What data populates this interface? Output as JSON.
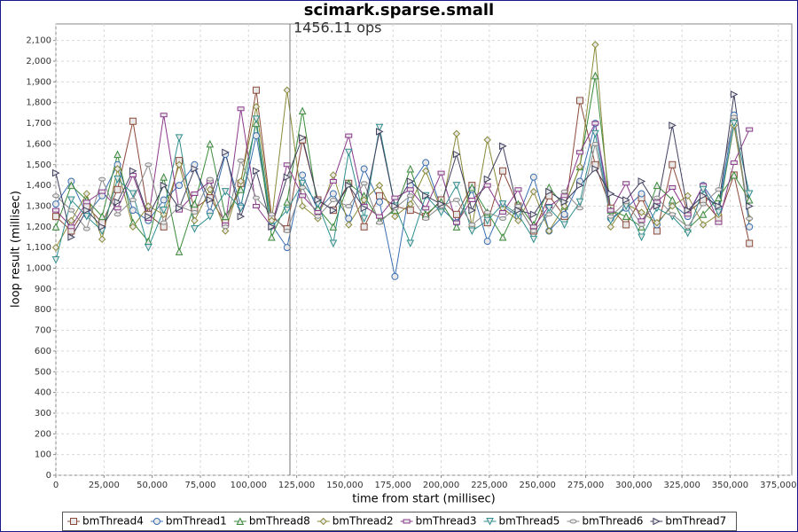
{
  "chart_data": {
    "type": "line",
    "title": "scimark.sparse.small",
    "x_label": "time from start (millisec)",
    "y_label": "loop result (millisec)",
    "x": [
      0,
      8000,
      16000,
      24000,
      32000,
      40000,
      48000,
      56000,
      64000,
      72000,
      80000,
      88000,
      96000,
      104000,
      112000,
      120000,
      128000,
      136000,
      144000,
      152000,
      160000,
      168000,
      176000,
      184000,
      192000,
      200000,
      208000,
      216000,
      224000,
      232000,
      240000,
      248000,
      256000,
      264000,
      272000,
      280000,
      288000,
      296000,
      304000,
      312000,
      320000,
      328000,
      336000,
      344000,
      352000,
      360000
    ],
    "xlim": [
      0,
      382000
    ],
    "ylim": [
      0,
      2180
    ],
    "grid": true,
    "legend": "bottom",
    "xticks": [
      0,
      {
        "value": 25000,
        "label": "25,000"
      },
      {
        "value": 50000,
        "label": "50,000"
      },
      {
        "value": 75000,
        "label": "75,000"
      },
      {
        "value": 100000,
        "label": "100,000"
      },
      {
        "value": 125000,
        "label": "125,000"
      },
      {
        "value": 150000,
        "label": "150,000"
      },
      {
        "value": 175000,
        "label": "175,000"
      },
      {
        "value": 200000,
        "label": "200,000"
      },
      {
        "value": 225000,
        "label": "225,000"
      },
      {
        "value": 250000,
        "label": "250,000"
      },
      {
        "value": 275000,
        "label": "275,000"
      },
      {
        "value": 300000,
        "label": "300,000"
      },
      {
        "value": 325000,
        "label": "325,000"
      },
      {
        "value": 350000,
        "label": "350,000"
      },
      {
        "value": 375000,
        "label": "375,000"
      }
    ],
    "yticks": [
      0,
      100,
      200,
      300,
      400,
      500,
      600,
      700,
      800,
      900,
      {
        "value": 1000,
        "label": "1,000"
      },
      {
        "value": 1100,
        "label": "1,100"
      },
      {
        "value": 1200,
        "label": "1,200"
      },
      {
        "value": 1300,
        "label": "1,300"
      },
      {
        "value": 1400,
        "label": "1,400"
      },
      {
        "value": 1500,
        "label": "1,500"
      },
      {
        "value": 1600,
        "label": "1,600"
      },
      {
        "value": 1700,
        "label": "1,700"
      },
      {
        "value": 1800,
        "label": "1,800"
      },
      {
        "value": 1900,
        "label": "1,900"
      },
      {
        "value": 2000,
        "label": "2,000"
      },
      {
        "value": 2100,
        "label": "2,100"
      }
    ],
    "marker_line": {
      "x": 121500,
      "label": "1456.11 ops"
    },
    "series": [
      {
        "name": "bmThread4",
        "color": "#8b4a3a",
        "marker": "square",
        "values": [
          1250,
          1180,
          1300,
          1220,
          1380,
          1710,
          1260,
          1200,
          1520,
          1290,
          1340,
          1220,
          1410,
          1860,
          1250,
          1190,
          1620,
          1330,
          1280,
          1410,
          1200,
          1350,
          1300,
          1280,
          1250,
          1330,
          1260,
          1400,
          1220,
          1470,
          1300,
          1180,
          1350,
          1250,
          1810,
          1500,
          1290,
          1210,
          1340,
          1180,
          1500,
          1270,
          1330,
          1240,
          1450,
          1120
        ]
      },
      {
        "name": "bmThread1",
        "color": "#3a6fb0",
        "marker": "circle",
        "values": [
          1310,
          1420,
          1260,
          1350,
          1500,
          1280,
          1230,
          1330,
          1400,
          1500,
          1270,
          1550,
          1300,
          1640,
          1210,
          1100,
          1450,
          1280,
          1360,
          1240,
          1480,
          1320,
          960,
          1400,
          1510,
          1290,
          1220,
          1380,
          1130,
          1300,
          1250,
          1440,
          1180,
          1260,
          1420,
          1700,
          1240,
          1290,
          1360,
          1210,
          1310,
          1250,
          1400,
          1290,
          1740,
          1200
        ]
      },
      {
        "name": "bmThread8",
        "color": "#3a8a3a",
        "marker": "triangle-up",
        "values": [
          1200,
          1400,
          1330,
          1250,
          1550,
          1220,
          1130,
          1440,
          1080,
          1310,
          1600,
          1250,
          1380,
          1700,
          1150,
          1320,
          1760,
          1290,
          1200,
          1410,
          1350,
          1230,
          1280,
          1480,
          1260,
          1320,
          1200,
          1390,
          1270,
          1150,
          1310,
          1210,
          1390,
          1300,
          1490,
          1930,
          1280,
          1250,
          1200,
          1400,
          1330,
          1190,
          1260,
          1340,
          1450,
          1330
        ]
      },
      {
        "name": "bmThread2",
        "color": "#8a8a3a",
        "marker": "diamond",
        "values": [
          1100,
          1230,
          1360,
          1140,
          1480,
          1200,
          1300,
          1260,
          1500,
          1230,
          1380,
          1180,
          1420,
          1780,
          1230,
          1860,
          1300,
          1240,
          1450,
          1210,
          1330,
          1400,
          1250,
          1310,
          1470,
          1280,
          1650,
          1200,
          1620,
          1290,
          1230,
          1370,
          1180,
          1300,
          1490,
          2080,
          1200,
          1310,
          1270,
          1220,
          1300,
          1350,
          1210,
          1260,
          1690,
          1240
        ]
      },
      {
        "name": "bmThread3",
        "color": "#8a3a8a",
        "marker": "rect",
        "values": [
          1280,
          1200,
          1320,
          1370,
          1290,
          1450,
          1240,
          1740,
          1280,
          1360,
          1420,
          1210,
          1770,
          1300,
          1200,
          1500,
          1350,
          1270,
          1420,
          1640,
          1300,
          1250,
          1340,
          1380,
          1290,
          1460,
          1220,
          1330,
          1400,
          1270,
          1380,
          1200,
          1300,
          1350,
          1560,
          1700,
          1280,
          1410,
          1230,
          1320,
          1390,
          1260,
          1400,
          1220,
          1510,
          1670
        ]
      },
      {
        "name": "bmThread5",
        "color": "#2f8f8f",
        "marker": "triangle-down",
        "values": [
          1040,
          1330,
          1250,
          1180,
          1430,
          1360,
          1100,
          1280,
          1630,
          1190,
          1250,
          1370,
          1290,
          1720,
          1200,
          1280,
          1410,
          1310,
          1120,
          1560,
          1240,
          1680,
          1300,
          1120,
          1350,
          1270,
          1400,
          1180,
          1230,
          1310,
          1260,
          1140,
          1290,
          1210,
          1320,
          1650,
          1230,
          1300,
          1150,
          1290,
          1250,
          1170,
          1380,
          1270,
          1700,
          1360
        ]
      },
      {
        "name": "bmThread6",
        "color": "#8a8a8a",
        "marker": "ellipse",
        "values": [
          1350,
          1280,
          1190,
          1430,
          1260,
          1330,
          1500,
          1220,
          1300,
          1270,
          1430,
          1200,
          1520,
          1340,
          1260,
          1180,
          1390,
          1250,
          1330,
          1300,
          1410,
          1220,
          1290,
          1350,
          1240,
          1300,
          1330,
          1210,
          1270,
          1240,
          1300,
          1180,
          1260,
          1370,
          1290,
          1600,
          1250,
          1320,
          1210,
          1340,
          1260,
          1200,
          1310,
          1380,
          1730,
          1240
        ]
      },
      {
        "name": "bmThread7",
        "color": "#404060",
        "marker": "triangle-right",
        "values": [
          1460,
          1150,
          1280,
          1200,
          1320,
          1470,
          1250,
          1400,
          1290,
          1480,
          1330,
          1560,
          1250,
          1470,
          1200,
          1440,
          1630,
          1330,
          1280,
          1400,
          1290,
          1660,
          1300,
          1420,
          1350,
          1310,
          1550,
          1280,
          1430,
          1590,
          1280,
          1260,
          1370,
          1320,
          1400,
          1480,
          1360,
          1330,
          1420,
          1300,
          1690,
          1280,
          1350,
          1300,
          1840,
          1300
        ]
      }
    ]
  }
}
